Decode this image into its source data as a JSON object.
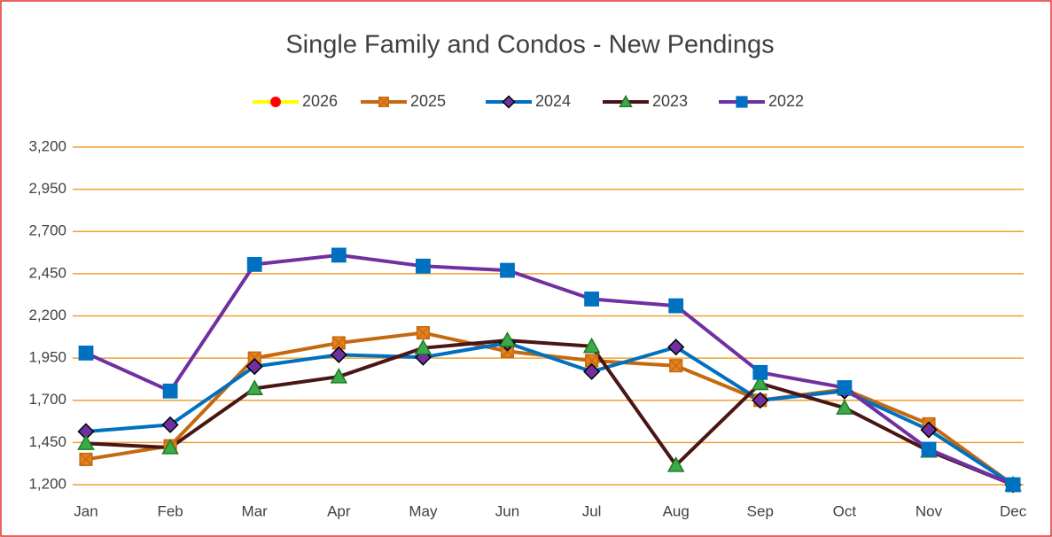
{
  "chart_data": {
    "type": "line",
    "title": "Single Family and Condos - New Pendings",
    "categories": [
      "Jan",
      "Feb",
      "Mar",
      "Apr",
      "May",
      "Jun",
      "Jul",
      "Aug",
      "Sep",
      "Oct",
      "Nov",
      "Dec"
    ],
    "series": [
      {
        "name": "2026",
        "color": "#ffff00",
        "marker": "circle",
        "marker_color": "#ff0000",
        "marker_stroke": "#ff0000",
        "values": [
          null,
          null,
          null,
          null,
          null,
          null,
          null,
          null,
          null,
          null,
          null,
          null
        ]
      },
      {
        "name": "2025",
        "color": "#c5690f",
        "marker": "xsquare",
        "marker_color": "#e6821e",
        "marker_stroke": "#c5690f",
        "values": [
          1350,
          1430,
          1950,
          2040,
          2100,
          1990,
          1935,
          1905,
          1700,
          1765,
          1560,
          1200
        ]
      },
      {
        "name": "2024",
        "color": "#0070c0",
        "marker": "diamond",
        "marker_color": "#7030a0",
        "marker_stroke": "#000000",
        "values": [
          1515,
          1555,
          1900,
          1970,
          1955,
          2040,
          1870,
          2015,
          1700,
          1755,
          1525,
          1200
        ]
      },
      {
        "name": "2023",
        "color": "#4a1515",
        "marker": "triangle",
        "marker_color": "#3caa46",
        "marker_stroke": "#1e7a2a",
        "values": [
          1445,
          1420,
          1770,
          1840,
          2010,
          2055,
          2020,
          1315,
          1800,
          1655,
          1400,
          1200
        ]
      },
      {
        "name": "2022",
        "color": "#7030a0",
        "marker": "square",
        "marker_color": "#0070c0",
        "marker_stroke": "#0070c0",
        "values": [
          1980,
          1755,
          2505,
          2560,
          2495,
          2470,
          2300,
          2260,
          1865,
          1775,
          1410,
          1200
        ]
      }
    ],
    "ylim": [
      1200,
      3200
    ],
    "yticks": [
      {
        "value": 1200,
        "label": "1,200"
      },
      {
        "value": 1450,
        "label": "1,450"
      },
      {
        "value": 1700,
        "label": "1,700"
      },
      {
        "value": 1950,
        "label": "1,950"
      },
      {
        "value": 2200,
        "label": "2,200"
      },
      {
        "value": 2450,
        "label": "2,450"
      },
      {
        "value": 2700,
        "label": "2,700"
      },
      {
        "value": 2950,
        "label": "2,950"
      },
      {
        "value": 3200,
        "label": "3,200"
      }
    ],
    "grid": true,
    "grid_color": "#f0a030",
    "legend": "top"
  }
}
